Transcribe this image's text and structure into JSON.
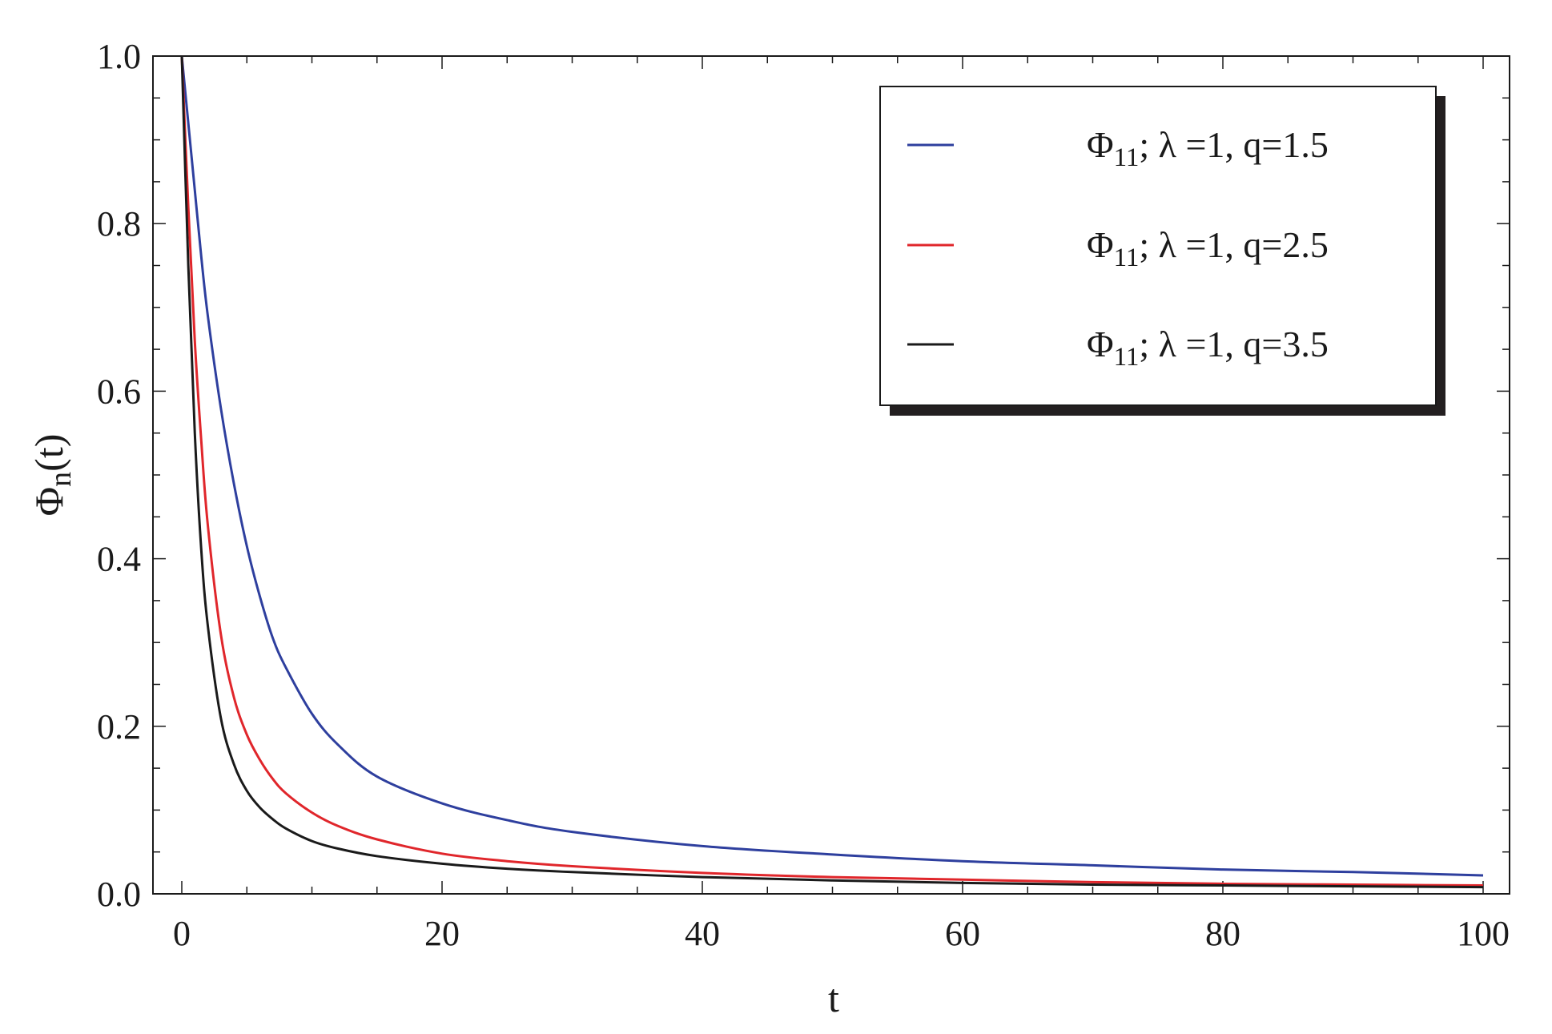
{
  "chart_data": {
    "type": "line",
    "title": "",
    "xlabel": "t",
    "ylabel": {
      "main": "Φ",
      "sub": "n",
      "suffix": "(t)"
    },
    "xlim": [
      0,
      100
    ],
    "ylim": [
      0.0,
      1.0
    ],
    "xticks": [
      0,
      20,
      40,
      60,
      80,
      100
    ],
    "xtick_labels": [
      "0",
      "20",
      "40",
      "60",
      "80",
      "100"
    ],
    "yticks": [
      0.0,
      0.2,
      0.4,
      0.6,
      0.8,
      1.0
    ],
    "ytick_labels": [
      "0.0",
      "0.2",
      "0.4",
      "0.6",
      "0.8",
      "1.0"
    ],
    "grid": false,
    "legend_position": "top-right",
    "series": [
      {
        "name": "Φ11; λ =1, q=1.5",
        "label_main": "Φ",
        "label_sub": "11",
        "label_rest": "; λ =1, q=1.5",
        "color": "#2e3f9e",
        "x": [
          0,
          0.5,
          1,
          1.5,
          2,
          3,
          4,
          5,
          6,
          7,
          8,
          10,
          12,
          15,
          20,
          25,
          30,
          40,
          50,
          60,
          70,
          80,
          90,
          100
        ],
        "y": [
          1.0,
          0.92,
          0.84,
          0.76,
          0.69,
          0.58,
          0.49,
          0.415,
          0.355,
          0.305,
          0.27,
          0.215,
          0.178,
          0.14,
          0.108,
          0.088,
          0.074,
          0.057,
          0.047,
          0.039,
          0.034,
          0.029,
          0.026,
          0.022
        ]
      },
      {
        "name": "Φ11; λ =1, q=2.5",
        "label_main": "Φ",
        "label_sub": "11",
        "label_rest": "; λ =1, q=2.5",
        "color": "#e0262b",
        "x": [
          0,
          0.5,
          1,
          1.5,
          2,
          3,
          4,
          5,
          6,
          7,
          8,
          10,
          12,
          15,
          20,
          25,
          30,
          40,
          50,
          60,
          70,
          80,
          90,
          100
        ],
        "y": [
          1.0,
          0.82,
          0.66,
          0.54,
          0.44,
          0.31,
          0.235,
          0.19,
          0.16,
          0.137,
          0.12,
          0.097,
          0.081,
          0.065,
          0.048,
          0.039,
          0.033,
          0.025,
          0.02,
          0.017,
          0.014,
          0.012,
          0.011,
          0.01
        ]
      },
      {
        "name": "Φ11; λ =1, q=3.5",
        "label_main": "Φ",
        "label_sub": "11",
        "label_rest": "; λ =1, q=3.5",
        "color": "#1a1a1a",
        "x": [
          0,
          0.5,
          1,
          1.5,
          2,
          3,
          4,
          5,
          6,
          7,
          8,
          10,
          12,
          15,
          20,
          25,
          30,
          40,
          50,
          60,
          70,
          80,
          90,
          100
        ],
        "y": [
          1.0,
          0.75,
          0.55,
          0.41,
          0.32,
          0.21,
          0.155,
          0.123,
          0.103,
          0.089,
          0.078,
          0.063,
          0.054,
          0.045,
          0.036,
          0.03,
          0.026,
          0.02,
          0.016,
          0.013,
          0.011,
          0.01,
          0.009,
          0.008
        ]
      }
    ]
  }
}
